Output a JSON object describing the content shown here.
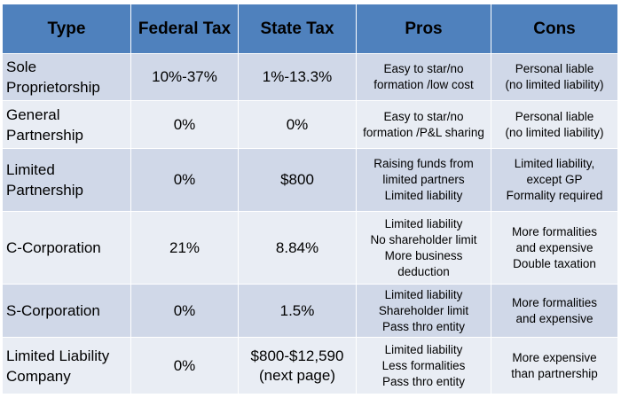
{
  "headers": [
    "Type",
    "Federal Tax",
    "State Tax",
    "Pros",
    "Cons"
  ],
  "rows": [
    {
      "type": [
        "Sole",
        "Proprietorship"
      ],
      "federal": "10%-37%",
      "state": [
        "1%-13.3%"
      ],
      "pros": [
        "Easy to star/no",
        "formation /low cost"
      ],
      "cons": [
        "Personal liable",
        "(no limited liability)"
      ]
    },
    {
      "type": [
        "General",
        "Partnership"
      ],
      "federal": "0%",
      "state": [
        "0%"
      ],
      "pros": [
        "Easy to star/no",
        "formation /P&L sharing"
      ],
      "cons": [
        "Personal liable",
        "(no limited liability)"
      ]
    },
    {
      "type": [
        "Limited",
        "Partnership"
      ],
      "federal": "0%",
      "state": [
        "$800"
      ],
      "pros": [
        "Raising funds from",
        "limited partners",
        "Limited liability"
      ],
      "cons": [
        "Limited liability,",
        "except GP",
        "Formality  required"
      ]
    },
    {
      "type": [
        "C-Corporation"
      ],
      "federal": "21%",
      "state": [
        "8.84%"
      ],
      "pros": [
        "Limited liability",
        "No shareholder limit",
        "More business",
        "deduction"
      ],
      "cons": [
        "More formalities",
        "and expensive",
        "Double taxation"
      ]
    },
    {
      "type": [
        "S-Corporation"
      ],
      "federal": "0%",
      "state": [
        "1.5%"
      ],
      "pros": [
        "Limited liability",
        "Shareholder limit",
        "Pass thro entity"
      ],
      "cons": [
        "More formalities",
        "and expensive"
      ]
    },
    {
      "type": [
        "Limited Liability",
        "Company"
      ],
      "federal": "0%",
      "state": [
        "$800-$12,590",
        "(next page)"
      ],
      "pros": [
        "Limited liability",
        "Less formalities",
        "Pass thro entity"
      ],
      "cons": [
        "More expensive",
        "than partnership"
      ]
    }
  ],
  "colors": {
    "header_bg": "#4f81bd",
    "row_dark": "#d0d8e8",
    "row_light": "#e9edf4"
  }
}
